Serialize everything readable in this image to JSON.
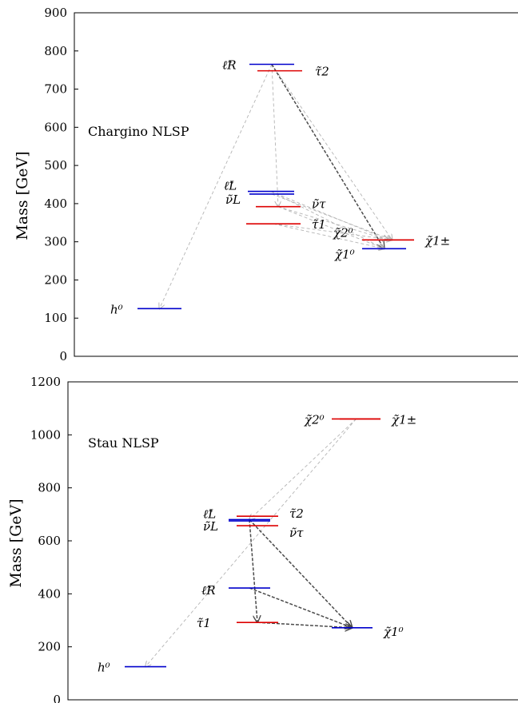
{
  "colors": {
    "blue": "#0000cc",
    "red": "#dd0000",
    "faint_arrow": "#b4b4b4",
    "strong_arrow": "#4a4a4a"
  },
  "chart_data": [
    {
      "type": "mass-spectrum",
      "title": "Chargino NLSP",
      "ylabel": "Mass [GeV]",
      "ylim": [
        0,
        900
      ],
      "yticks": [
        "0",
        "100",
        "200",
        "300",
        "400",
        "500",
        "600",
        "700",
        "800",
        "900"
      ],
      "levels": [
        {
          "label": "ℓ̃R",
          "mass": 765,
          "color": "blue",
          "column": 2
        },
        {
          "label": "τ̃2",
          "mass": 748,
          "color": "red",
          "column": 2
        },
        {
          "label": "ℓ̃L",
          "mass": 432,
          "color": "blue",
          "column": 2
        },
        {
          "label": "ν̃L",
          "mass": 425,
          "color": "blue",
          "column": 2
        },
        {
          "label": "ν̃τ",
          "mass": 392,
          "color": "red",
          "column": 2
        },
        {
          "label": "τ̃1",
          "mass": 347,
          "color": "red",
          "column": 2
        },
        {
          "label": "χ̃2⁰",
          "mass": 305,
          "color": "red",
          "column": 3
        },
        {
          "label": "χ̃1±",
          "mass": 305,
          "color": "red",
          "column": 3
        },
        {
          "label": "χ̃1⁰",
          "mass": 282,
          "color": "blue",
          "column": 3
        },
        {
          "label": "h⁰",
          "mass": 125,
          "color": "blue",
          "column": 1
        }
      ],
      "decays": [
        {
          "from": "ℓ̃R",
          "to": "h⁰",
          "style": "faint"
        },
        {
          "from": "ℓ̃R",
          "to": "ν̃τ",
          "style": "faint"
        },
        {
          "from": "ℓ̃R",
          "to": "χ̃1±",
          "style": "faint"
        },
        {
          "from": "ℓ̃R",
          "to": "χ̃1⁰",
          "style": "strong"
        },
        {
          "from": "ℓ̃L",
          "to": "χ̃2⁰",
          "style": "faint"
        },
        {
          "from": "ℓ̃L",
          "to": "χ̃1⁰",
          "style": "faint"
        },
        {
          "from": "ν̃L",
          "to": "χ̃1±",
          "style": "faint"
        },
        {
          "from": "ν̃τ",
          "to": "χ̃2⁰",
          "style": "faint"
        },
        {
          "from": "ν̃τ",
          "to": "χ̃1⁰",
          "style": "faint"
        },
        {
          "from": "τ̃1",
          "to": "χ̃1±",
          "style": "faint"
        },
        {
          "from": "τ̃1",
          "to": "χ̃1⁰",
          "style": "faint"
        }
      ]
    },
    {
      "type": "mass-spectrum",
      "title": "Stau NLSP",
      "ylabel": "Mass [GeV]",
      "ylim": [
        0,
        1200
      ],
      "yticks": [
        "0",
        "200",
        "400",
        "600",
        "800",
        "1000",
        "1200"
      ],
      "levels": [
        {
          "label": "χ̃2⁰",
          "mass": 1060,
          "color": "red",
          "column": 3
        },
        {
          "label": "χ̃1±",
          "mass": 1060,
          "color": "red",
          "column": 3
        },
        {
          "label": "τ̃2",
          "mass": 693,
          "color": "red",
          "column": 2
        },
        {
          "label": "ℓ̃L",
          "mass": 680,
          "color": "blue",
          "column": 2
        },
        {
          "label": "ν̃L",
          "mass": 675,
          "color": "blue",
          "column": 2
        },
        {
          "label": "ν̃τ",
          "mass": 657,
          "color": "red",
          "column": 2
        },
        {
          "label": "ℓ̃R",
          "mass": 422,
          "color": "blue",
          "column": 2
        },
        {
          "label": "τ̃1",
          "mass": 292,
          "color": "red",
          "column": 2
        },
        {
          "label": "χ̃1⁰",
          "mass": 272,
          "color": "blue",
          "column": 3
        },
        {
          "label": "h⁰",
          "mass": 125,
          "color": "blue",
          "column": 1
        }
      ],
      "decays": [
        {
          "from": "χ̃2⁰",
          "to": "ℓ̃L",
          "style": "faint"
        },
        {
          "from": "χ̃2⁰",
          "to": "h⁰",
          "style": "faint"
        },
        {
          "from": "ℓ̃L",
          "to": "τ̃1",
          "style": "strong"
        },
        {
          "from": "ℓ̃L",
          "to": "χ̃1⁰",
          "style": "strong"
        },
        {
          "from": "ℓ̃R",
          "to": "χ̃1⁰",
          "style": "strong"
        },
        {
          "from": "τ̃1",
          "to": "χ̃1⁰",
          "style": "strong"
        }
      ]
    }
  ]
}
